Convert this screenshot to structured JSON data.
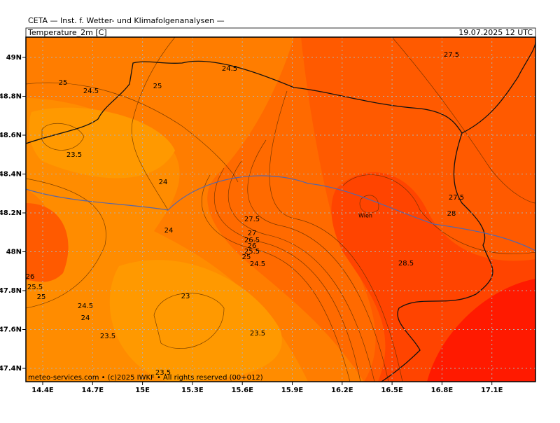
{
  "header": {
    "title": "CETA — Inst. f. Wetter- und Klimafolgenanalysen —"
  },
  "panel": {
    "variable": "Temperature_2m [C]",
    "valid_time": "19.07.2025 12 UTC"
  },
  "axes": {
    "x_labels": [
      "14.4E",
      "14.7E",
      "15E",
      "15.3E",
      "15.6E",
      "15.9E",
      "16.2E",
      "16.5E",
      "16.8E",
      "17.1E"
    ],
    "y_labels": [
      "49N",
      "48.8N",
      "48.6N",
      "48.4N",
      "48.2N",
      "48N",
      "47.8N",
      "47.6N",
      "47.4N"
    ]
  },
  "contour_labels": [
    "25",
    "24.5",
    "25",
    "24.5",
    "27.5",
    "23.5",
    "24",
    "27.5",
    "28",
    "27.5",
    "24",
    "27",
    "26.5",
    "26",
    "25.5",
    "25",
    "24.5",
    "28.5",
    "26",
    "25.5",
    "25",
    "24.5",
    "24",
    "23",
    "23.5",
    "23.5",
    "23.5"
  ],
  "places": [
    {
      "label": "Wien"
    }
  ],
  "footer": {
    "credit": "meteo-services.com • (c)2025 IWKF • All rights reserved (00+012)"
  }
}
